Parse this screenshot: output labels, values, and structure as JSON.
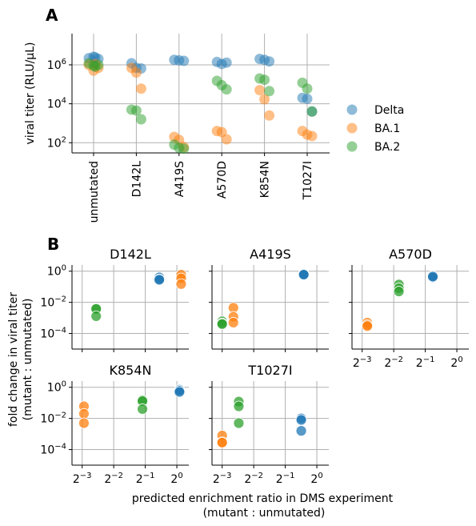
{
  "panel_labels": {
    "a": "A",
    "b": "B"
  },
  "colors": {
    "Delta": "#1f77b4",
    "BA.1": "#ff7f0e",
    "BA.2": "#2ca02c"
  },
  "chart_data": [
    {
      "id": "A",
      "type": "scatter",
      "scale_y": "log10",
      "ylabel": "viral titer (RLU/μL)",
      "ylim": [
        30,
        40000000
      ],
      "y_ticks": [
        {
          "value": 100,
          "base": "10",
          "exp": "2"
        },
        {
          "value": 10000,
          "base": "10",
          "exp": "4"
        },
        {
          "value": 1000000,
          "base": "10",
          "exp": "6"
        }
      ],
      "categories": [
        "unmutated",
        "D142L",
        "A419S",
        "A570D",
        "K854N",
        "T1027I"
      ],
      "grid": true,
      "legend": {
        "position": "right",
        "entries": [
          "Delta",
          "BA.1",
          "BA.2"
        ]
      },
      "series": [
        {
          "name": "Delta",
          "points": [
            [
              "unmutated",
              2200000
            ],
            [
              "unmutated",
              2600000
            ],
            [
              "unmutated",
              2000000
            ],
            [
              "unmutated",
              2400000
            ],
            [
              "D142L",
              1200000
            ],
            [
              "D142L",
              700000
            ],
            [
              "D142L",
              650000
            ],
            [
              "A419S",
              1800000
            ],
            [
              "A419S",
              1700000
            ],
            [
              "A419S",
              1600000
            ],
            [
              "A570D",
              1400000
            ],
            [
              "A570D",
              1100000
            ],
            [
              "A570D",
              1300000
            ],
            [
              "K854N",
              2000000
            ],
            [
              "K854N",
              1800000
            ],
            [
              "K854N",
              1500000
            ],
            [
              "T1027I",
              20000
            ],
            [
              "T1027I",
              18000
            ],
            [
              "T1027I",
              4000
            ]
          ]
        },
        {
          "name": "BA.1",
          "points": [
            [
              "unmutated",
              1000000
            ],
            [
              "unmutated",
              500000
            ],
            [
              "unmutated",
              700000
            ],
            [
              "unmutated",
              1100000
            ],
            [
              "D142L",
              700000
            ],
            [
              "D142L",
              400000
            ],
            [
              "D142L",
              60000
            ],
            [
              "A419S",
              200
            ],
            [
              "A419S",
              140
            ],
            [
              "A419S",
              60
            ],
            [
              "A570D",
              400
            ],
            [
              "A570D",
              350
            ],
            [
              "A570D",
              150
            ],
            [
              "K854N",
              50000
            ],
            [
              "K854N",
              17000
            ],
            [
              "K854N",
              2500
            ],
            [
              "T1027I",
              400
            ],
            [
              "T1027I",
              260
            ],
            [
              "T1027I",
              220
            ]
          ]
        },
        {
          "name": "BA.2",
          "points": [
            [
              "unmutated",
              1200000
            ],
            [
              "unmutated",
              900000
            ],
            [
              "unmutated",
              1000000
            ],
            [
              "unmutated",
              800000
            ],
            [
              "D142L",
              5000
            ],
            [
              "D142L",
              4500
            ],
            [
              "D142L",
              1600
            ],
            [
              "A419S",
              80
            ],
            [
              "A419S",
              55
            ],
            [
              "A419S",
              50
            ],
            [
              "A570D",
              150000
            ],
            [
              "A570D",
              90000
            ],
            [
              "A570D",
              55000
            ],
            [
              "K854N",
              200000
            ],
            [
              "K854N",
              170000
            ],
            [
              "K854N",
              45000
            ],
            [
              "T1027I",
              120000
            ],
            [
              "T1027I",
              60000
            ],
            [
              "T1027I",
              4000
            ]
          ]
        }
      ]
    },
    {
      "id": "B",
      "type": "scatter",
      "xlabel": "predicted enrichment ratio in DMS experiment",
      "xlabel2": "(mutant : unmutated)",
      "ylabel": "fold change in viral titer",
      "ylabel2": "(mutant : unmutated)",
      "scale_x": "log2",
      "scale_y": "log10",
      "xlim": [
        0.1,
        1.3
      ],
      "ylim": [
        1e-05,
        2.5
      ],
      "x_ticks": [
        {
          "value": 0.125,
          "base": "2",
          "exp": "−3"
        },
        {
          "value": 0.25,
          "base": "2",
          "exp": "−2"
        },
        {
          "value": 0.5,
          "base": "2",
          "exp": "−1"
        },
        {
          "value": 1,
          "base": "2",
          "exp": "0"
        }
      ],
      "y_ticks": [
        {
          "value": 0.0001,
          "base": "10",
          "exp": "−4"
        },
        {
          "value": 0.01,
          "base": "10",
          "exp": "−2"
        },
        {
          "value": 1,
          "base": "10",
          "exp": "0"
        }
      ],
      "grid": true,
      "subplots": [
        {
          "title": "D142L",
          "series": [
            {
              "name": "Delta",
              "points": [
                [
                  0.68,
                  0.4
                ],
                [
                  0.68,
                  0.3
                ],
                [
                  0.68,
                  0.28
                ]
              ]
            },
            {
              "name": "BA.1",
              "points": [
                [
                  1.1,
                  0.6
                ],
                [
                  1.1,
                  0.35
                ],
                [
                  1.1,
                  0.15
                ]
              ]
            },
            {
              "name": "BA.2",
              "points": [
                [
                  0.17,
                  0.004
                ],
                [
                  0.17,
                  0.0038
                ],
                [
                  0.17,
                  0.0013
                ]
              ]
            }
          ]
        },
        {
          "title": "A419S",
          "series": [
            {
              "name": "Delta",
              "points": [
                [
                  0.75,
                  0.7
                ],
                [
                  0.75,
                  0.65
                ],
                [
                  0.75,
                  0.6
                ]
              ]
            },
            {
              "name": "BA.1",
              "points": [
                [
                  0.16,
                  0.0045
                ],
                [
                  0.16,
                  0.0012
                ],
                [
                  0.16,
                  0.0005
                ]
              ]
            },
            {
              "name": "BA.2",
              "points": [
                [
                  0.125,
                  0.0006
                ],
                [
                  0.125,
                  0.00045
                ],
                [
                  0.125,
                  0.0004
                ]
              ]
            }
          ]
        },
        {
          "title": "A570D",
          "series": [
            {
              "name": "Delta",
              "points": [
                [
                  0.59,
                  0.5
                ],
                [
                  0.59,
                  0.4
                ],
                [
                  0.59,
                  0.45
                ]
              ]
            },
            {
              "name": "BA.1",
              "points": [
                [
                  0.14,
                  0.0005
                ],
                [
                  0.14,
                  0.00035
                ],
                [
                  0.14,
                  0.0003
                ]
              ]
            },
            {
              "name": "BA.2",
              "points": [
                [
                  0.28,
                  0.14
                ],
                [
                  0.28,
                  0.08
                ],
                [
                  0.28,
                  0.05
                ]
              ]
            }
          ]
        },
        {
          "title": "K854N",
          "series": [
            {
              "name": "Delta",
              "points": [
                [
                  1.06,
                  0.7
                ],
                [
                  1.06,
                  0.6
                ],
                [
                  1.06,
                  0.5
                ]
              ]
            },
            {
              "name": "BA.1",
              "points": [
                [
                  0.13,
                  0.06
                ],
                [
                  0.13,
                  0.02
                ],
                [
                  0.13,
                  0.005
                ]
              ]
            },
            {
              "name": "BA.2",
              "points": [
                [
                  0.47,
                  0.15
                ],
                [
                  0.47,
                  0.13
                ],
                [
                  0.47,
                  0.04
                ]
              ]
            }
          ]
        },
        {
          "title": "T1027I",
          "series": [
            {
              "name": "Delta",
              "points": [
                [
                  0.71,
                  0.01
                ],
                [
                  0.71,
                  0.008
                ],
                [
                  0.71,
                  0.0016
                ]
              ]
            },
            {
              "name": "BA.1",
              "points": [
                [
                  0.125,
                  0.0008
                ],
                [
                  0.125,
                  0.0003
                ],
                [
                  0.125,
                  0.00028
                ]
              ]
            },
            {
              "name": "BA.2",
              "points": [
                [
                  0.18,
                  0.12
                ],
                [
                  0.18,
                  0.06
                ],
                [
                  0.18,
                  0.005
                ]
              ]
            }
          ]
        }
      ]
    }
  ]
}
